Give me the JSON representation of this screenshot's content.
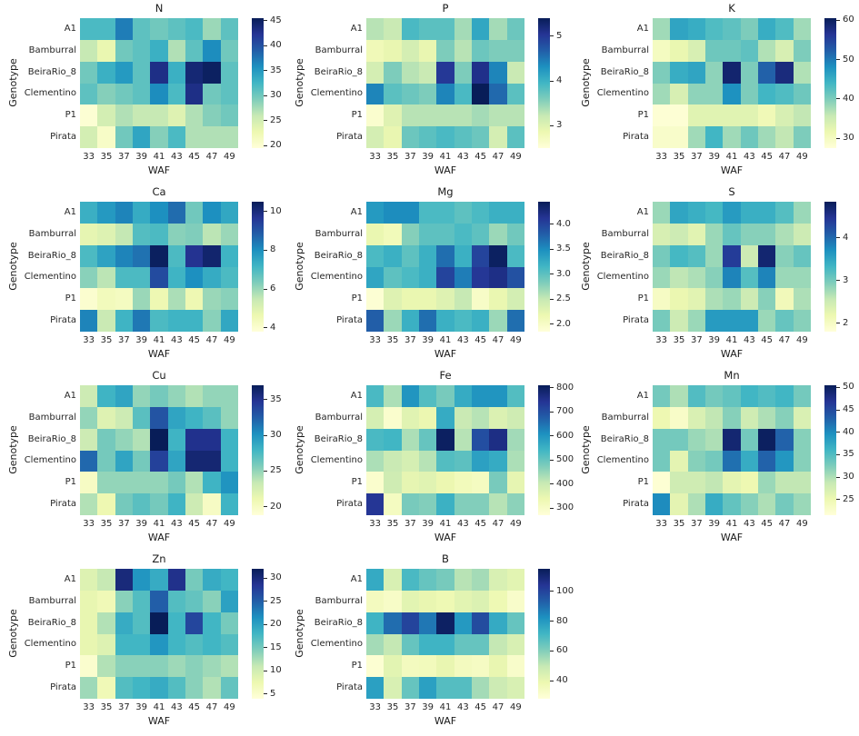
{
  "figure": {
    "description": "Grid of nutrient heatmaps by Genotype and WAF",
    "background": "#ffffff",
    "text_color": "#262626"
  },
  "colormap": {
    "name": "YlGnBu",
    "stops": [
      [
        255,
        255,
        217
      ],
      [
        237,
        248,
        177
      ],
      [
        199,
        233,
        180
      ],
      [
        127,
        205,
        187
      ],
      [
        65,
        182,
        196
      ],
      [
        29,
        145,
        192
      ],
      [
        34,
        94,
        168
      ],
      [
        37,
        52,
        148
      ],
      [
        8,
        29,
        88
      ]
    ]
  },
  "chart_data": [
    {
      "type": "heatmap",
      "title": "N",
      "xlabel": "WAF",
      "ylabel": "Genotype",
      "x": [
        "33",
        "35",
        "37",
        "39",
        "41",
        "43",
        "45",
        "47",
        "49"
      ],
      "y": [
        "A1",
        "Bamburral",
        "BeiraRio_8",
        "Clementino",
        "P1",
        "Pirata"
      ],
      "vmin": 19.5,
      "vmax": 45.5,
      "tick_values": [
        20,
        25,
        30,
        35,
        40,
        45
      ],
      "tick_labels": [
        "20",
        "25",
        "30",
        "35",
        "40",
        "45"
      ],
      "values": [
        [
          32,
          32,
          37,
          31,
          30,
          31,
          32,
          28,
          31
        ],
        [
          26,
          23,
          30,
          31,
          33,
          27,
          31,
          36,
          30
        ],
        [
          30,
          33,
          35,
          31,
          43,
          33,
          44,
          45,
          31
        ],
        [
          31,
          29,
          30,
          31,
          36,
          32,
          43,
          30,
          31
        ],
        [
          20,
          25,
          27,
          26,
          26,
          24,
          27,
          29,
          30
        ],
        [
          25,
          21,
          30,
          34,
          29,
          32,
          27,
          27,
          27
        ]
      ]
    },
    {
      "type": "heatmap",
      "title": "P",
      "xlabel": "WAF",
      "ylabel": "Genotype",
      "x": [
        "33",
        "35",
        "37",
        "39",
        "41",
        "43",
        "45",
        "47",
        "49"
      ],
      "y": [
        "A1",
        "Bamburral",
        "BeiraRio_8",
        "Clementino",
        "P1",
        "Pirata"
      ],
      "vmin": 2.5,
      "vmax": 5.4,
      "tick_values": [
        3,
        4,
        5
      ],
      "tick_labels": [
        "3",
        "4",
        "5"
      ],
      "values": [
        [
          3.3,
          3.2,
          3.9,
          3.8,
          3.8,
          3.4,
          4.1,
          3.4,
          3.7
        ],
        [
          2.8,
          2.9,
          3.1,
          2.9,
          3.6,
          3.3,
          3.7,
          3.6,
          3.6
        ],
        [
          3.1,
          3.6,
          3.3,
          3.2,
          5.0,
          3.6,
          5.1,
          4.4,
          3.2
        ],
        [
          4.4,
          3.8,
          3.7,
          3.6,
          4.4,
          3.9,
          5.4,
          4.6,
          3.8
        ],
        [
          2.6,
          3.0,
          3.3,
          3.3,
          3.3,
          3.3,
          3.4,
          3.3,
          3.3
        ],
        [
          3.1,
          2.9,
          3.7,
          3.8,
          3.9,
          3.8,
          3.7,
          3.1,
          3.8
        ]
      ]
    },
    {
      "type": "heatmap",
      "title": "K",
      "xlabel": "WAF",
      "ylabel": "Genotype",
      "x": [
        "33",
        "35",
        "37",
        "39",
        "41",
        "43",
        "45",
        "47",
        "49"
      ],
      "y": [
        "A1",
        "Bamburral",
        "BeiraRio_8",
        "Clementino",
        "P1",
        "Pirata"
      ],
      "vmin": 27.5,
      "vmax": 60.5,
      "tick_values": [
        30,
        40,
        50,
        60
      ],
      "tick_labels": [
        "30",
        "40",
        "50",
        "60"
      ],
      "values": [
        [
          38,
          46,
          45,
          43,
          42,
          40,
          45,
          43,
          38
        ],
        [
          30,
          32,
          34,
          41,
          41,
          42,
          37,
          34,
          40
        ],
        [
          40,
          45,
          46,
          39,
          59,
          40,
          52,
          58,
          37
        ],
        [
          38,
          34,
          39,
          39,
          48,
          40,
          44,
          43,
          41
        ],
        [
          28,
          28,
          33,
          33,
          33,
          33,
          31,
          34,
          36
        ],
        [
          29,
          29,
          38,
          44,
          38,
          41,
          38,
          36,
          40
        ]
      ]
    },
    {
      "type": "heatmap",
      "title": "Ca",
      "xlabel": "WAF",
      "ylabel": "Genotype",
      "x": [
        "33",
        "35",
        "37",
        "39",
        "41",
        "43",
        "45",
        "47",
        "49"
      ],
      "y": [
        "A1",
        "Bamburral",
        "BeiraRio_8",
        "Clementino",
        "P1",
        "Pirata"
      ],
      "vmin": 3.8,
      "vmax": 10.5,
      "tick_values": [
        4,
        6,
        8,
        10
      ],
      "tick_labels": [
        "4",
        "6",
        "8",
        "10"
      ],
      "values": [
        [
          7.3,
          7.8,
          8.2,
          7.4,
          8.0,
          8.6,
          6.5,
          8.0,
          7.5
        ],
        [
          4.8,
          5.0,
          5.5,
          6.9,
          7.0,
          6.2,
          6.3,
          5.6,
          6.0
        ],
        [
          7.0,
          7.6,
          8.2,
          8.5,
          10.4,
          7.0,
          9.7,
          10.2,
          7.2
        ],
        [
          6.2,
          5.6,
          7.0,
          7.0,
          9.2,
          7.2,
          8.0,
          7.4,
          7.0
        ],
        [
          4.0,
          4.4,
          4.3,
          6.0,
          4.6,
          5.8,
          4.6,
          6.0,
          6.2
        ],
        [
          8.2,
          5.4,
          7.2,
          8.4,
          7.0,
          7.2,
          7.2,
          6.2,
          7.5
        ]
      ]
    },
    {
      "type": "heatmap",
      "title": "Mg",
      "xlabel": "WAF",
      "ylabel": "Genotype",
      "x": [
        "33",
        "35",
        "37",
        "39",
        "41",
        "43",
        "45",
        "47",
        "49"
      ],
      "y": [
        "A1",
        "Bamburral",
        "BeiraRio_8",
        "Clementino",
        "P1",
        "Pirata"
      ],
      "vmin": 1.85,
      "vmax": 4.45,
      "tick_values": [
        2.0,
        2.5,
        3.0,
        3.5,
        4.0
      ],
      "tick_labels": [
        "2.0",
        "2.5",
        "3.0",
        "3.5",
        "4.0"
      ],
      "values": [
        [
          3.4,
          3.5,
          3.5,
          3.1,
          3.1,
          3.0,
          3.1,
          3.2,
          3.2
        ],
        [
          2.2,
          2.1,
          2.8,
          3.0,
          3.0,
          3.1,
          3.0,
          2.7,
          2.9
        ],
        [
          3.1,
          3.2,
          3.0,
          3.2,
          3.7,
          3.2,
          4.0,
          4.4,
          3.1
        ],
        [
          3.3,
          3.0,
          3.1,
          3.2,
          4.0,
          3.6,
          4.1,
          4.2,
          3.9
        ],
        [
          1.9,
          2.3,
          2.2,
          2.2,
          2.3,
          2.5,
          2.0,
          2.2,
          2.4
        ],
        [
          3.8,
          2.7,
          3.2,
          3.7,
          3.2,
          3.1,
          3.2,
          2.7,
          3.7
        ]
      ]
    },
    {
      "type": "heatmap",
      "title": "S",
      "xlabel": "WAF",
      "ylabel": "Genotype",
      "x": [
        "33",
        "35",
        "37",
        "39",
        "41",
        "43",
        "45",
        "47",
        "49"
      ],
      "y": [
        "A1",
        "Bamburral",
        "BeiraRio_8",
        "Clementino",
        "P1",
        "Pirata"
      ],
      "vmin": 1.8,
      "vmax": 4.85,
      "tick_values": [
        2,
        3,
        4
      ],
      "tick_labels": [
        "2",
        "3",
        "4"
      ],
      "values": [
        [
          2.8,
          3.5,
          3.4,
          3.3,
          3.6,
          3.4,
          3.4,
          3.2,
          2.8
        ],
        [
          2.4,
          2.5,
          2.3,
          2.8,
          3.1,
          2.9,
          2.9,
          2.7,
          2.5
        ],
        [
          3.0,
          3.3,
          3.2,
          2.8,
          4.4,
          2.5,
          4.7,
          2.9,
          3.1
        ],
        [
          2.8,
          2.6,
          2.7,
          2.9,
          3.8,
          3.2,
          3.8,
          2.8,
          2.8
        ],
        [
          2.0,
          2.2,
          2.3,
          2.7,
          2.8,
          2.5,
          2.9,
          2.1,
          2.7
        ],
        [
          3.0,
          2.5,
          2.8,
          3.6,
          3.6,
          3.6,
          2.8,
          3.1,
          2.9
        ]
      ]
    },
    {
      "type": "heatmap",
      "title": "Cu",
      "xlabel": "WAF",
      "ylabel": "Genotype",
      "x": [
        "33",
        "35",
        "37",
        "39",
        "41",
        "43",
        "45",
        "47",
        "49"
      ],
      "y": [
        "A1",
        "Bamburral",
        "BeiraRio_8",
        "Clementino",
        "P1",
        "Pirata"
      ],
      "vmin": 18.8,
      "vmax": 37.0,
      "tick_values": [
        20,
        25,
        30,
        35
      ],
      "tick_labels": [
        "20",
        "25",
        "30",
        "35"
      ],
      "values": [
        [
          23,
          28,
          29,
          25,
          26,
          25,
          24,
          25,
          25
        ],
        [
          25,
          22,
          23,
          27,
          33,
          29,
          28,
          27,
          25
        ],
        [
          23,
          26,
          25,
          24,
          37,
          28,
          35,
          35,
          28
        ],
        [
          32,
          26,
          29,
          26,
          34,
          29,
          36,
          36,
          28
        ],
        [
          20,
          25,
          25,
          25,
          25,
          26,
          24,
          28,
          30
        ],
        [
          24,
          21,
          26,
          27,
          26,
          28,
          23,
          20,
          28
        ]
      ]
    },
    {
      "type": "heatmap",
      "title": "Fe",
      "xlabel": "WAF",
      "ylabel": "Genotype",
      "x": [
        "33",
        "35",
        "37",
        "39",
        "41",
        "43",
        "45",
        "47",
        "49"
      ],
      "y": [
        "A1",
        "Bamburral",
        "BeiraRio_8",
        "Clementino",
        "P1",
        "Pirata"
      ],
      "vmin": 270,
      "vmax": 810,
      "tick_values": [
        300,
        400,
        500,
        600,
        700,
        800
      ],
      "tick_labels": [
        "300",
        "400",
        "500",
        "600",
        "700",
        "800"
      ],
      "values": [
        [
          530,
          430,
          600,
          520,
          480,
          560,
          600,
          600,
          520
        ],
        [
          380,
          290,
          360,
          340,
          560,
          400,
          420,
          370,
          390
        ],
        [
          530,
          540,
          430,
          500,
          800,
          420,
          700,
          760,
          440
        ],
        [
          430,
          400,
          380,
          420,
          520,
          510,
          580,
          560,
          430
        ],
        [
          290,
          390,
          350,
          360,
          340,
          320,
          310,
          480,
          350
        ],
        [
          740,
          310,
          480,
          470,
          550,
          470,
          470,
          420,
          460
        ]
      ]
    },
    {
      "type": "heatmap",
      "title": "Mn",
      "xlabel": "WAF",
      "ylabel": "Genotype",
      "x": [
        "33",
        "35",
        "37",
        "39",
        "41",
        "43",
        "45",
        "47",
        "49"
      ],
      "y": [
        "A1",
        "Bamburral",
        "BeiraRio_8",
        "Clementino",
        "P1",
        "Pirata"
      ],
      "vmin": 21.5,
      "vmax": 50.5,
      "tick_values": [
        25,
        30,
        35,
        40,
        45,
        50
      ],
      "tick_labels": [
        "25",
        "30",
        "35",
        "40",
        "45",
        "50"
      ],
      "values": [
        [
          33,
          30,
          35,
          33,
          34,
          36,
          35,
          36,
          33
        ],
        [
          25,
          23,
          27,
          29,
          32,
          28,
          30,
          32,
          27
        ],
        [
          33,
          33,
          31,
          30,
          49,
          33,
          50,
          43,
          32
        ],
        [
          33,
          26,
          32,
          33,
          42,
          37,
          43,
          39,
          32
        ],
        [
          22,
          28,
          28,
          29,
          26,
          25,
          31,
          29,
          29
        ],
        [
          40,
          26,
          30,
          37,
          34,
          32,
          30,
          33,
          31
        ]
      ]
    },
    {
      "type": "heatmap",
      "title": "Zn",
      "xlabel": "WAF",
      "ylabel": "Genotype",
      "x": [
        "33",
        "35",
        "37",
        "39",
        "41",
        "43",
        "45",
        "47",
        "49"
      ],
      "y": [
        "A1",
        "Bamburral",
        "BeiraRio_8",
        "Clementino",
        "P1",
        "Pirata"
      ],
      "vmin": 4,
      "vmax": 32,
      "tick_values": [
        5,
        10,
        15,
        20,
        25,
        30
      ],
      "tick_labels": [
        "5",
        "10",
        "15",
        "20",
        "25",
        "30"
      ],
      "values": [
        [
          9,
          11,
          30,
          21,
          19,
          29,
          15,
          19,
          18
        ],
        [
          8,
          7,
          14,
          17,
          25,
          17,
          16,
          14,
          20
        ],
        [
          8,
          12,
          19,
          17,
          32,
          18,
          27,
          18,
          15
        ],
        [
          8,
          9,
          18,
          18,
          21,
          18,
          17,
          18,
          17
        ],
        [
          5,
          12,
          14,
          14,
          14,
          13,
          14,
          13,
          12
        ],
        [
          13,
          7,
          17,
          18,
          19,
          17,
          14,
          12,
          16
        ]
      ]
    },
    {
      "type": "heatmap",
      "title": "B",
      "xlabel": "WAF",
      "ylabel": "Genotype",
      "x": [
        "33",
        "35",
        "37",
        "39",
        "41",
        "43",
        "45",
        "47",
        "49"
      ],
      "y": [
        "A1",
        "Bamburral",
        "BeiraRio_8",
        "Clementino",
        "P1",
        "Pirata"
      ],
      "vmin": 28,
      "vmax": 115,
      "tick_values": [
        40,
        60,
        80,
        100
      ],
      "tick_labels": [
        "40",
        "60",
        "80",
        "100"
      ],
      "values": [
        [
          75,
          45,
          70,
          65,
          62,
          52,
          55,
          45,
          42
        ],
        [
          35,
          33,
          42,
          40,
          38,
          42,
          44,
          38,
          32
        ],
        [
          72,
          90,
          100,
          88,
          113,
          80,
          98,
          75,
          65
        ],
        [
          55,
          50,
          65,
          72,
          72,
          65,
          65,
          50,
          45
        ],
        [
          30,
          42,
          35,
          36,
          40,
          35,
          34,
          40,
          32
        ],
        [
          78,
          45,
          65,
          78,
          68,
          68,
          55,
          48,
          45
        ]
      ]
    }
  ]
}
